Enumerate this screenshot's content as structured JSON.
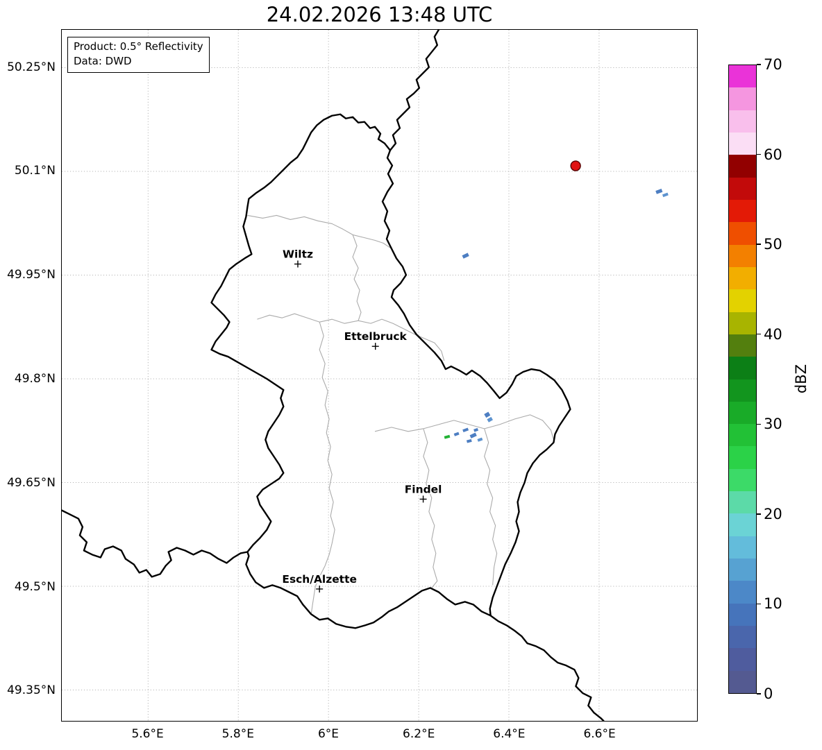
{
  "title": "24.02.2026 13:48 UTC",
  "info_box": {
    "line1": "Product: 0.5° Reflectivity",
    "line2": "Data: DWD"
  },
  "axes": {
    "x_ticks": [
      {
        "label": "5.6°E",
        "lon": 5.6
      },
      {
        "label": "5.8°E",
        "lon": 5.8
      },
      {
        "label": "6°E",
        "lon": 6.0
      },
      {
        "label": "6.2°E",
        "lon": 6.2
      },
      {
        "label": "6.4°E",
        "lon": 6.4
      },
      {
        "label": "6.6°E",
        "lon": 6.6
      }
    ],
    "y_ticks": [
      {
        "label": "50.25°N",
        "lat": 50.25
      },
      {
        "label": "50.1°N",
        "lat": 50.1
      },
      {
        "label": "49.95°N",
        "lat": 49.95
      },
      {
        "label": "49.8°N",
        "lat": 49.8
      },
      {
        "label": "49.65°N",
        "lat": 49.65
      },
      {
        "label": "49.5°N",
        "lat": 49.5
      },
      {
        "label": "49.35°N",
        "lat": 49.35
      }
    ]
  },
  "cities": [
    {
      "name": "Wiltz",
      "lon": 5.932,
      "lat": 49.966
    },
    {
      "name": "Ettelbruck",
      "lon": 6.104,
      "lat": 49.847
    },
    {
      "name": "Findel",
      "lon": 6.21,
      "lat": 49.626
    },
    {
      "name": "Esch/Alzette",
      "lon": 5.98,
      "lat": 49.496
    }
  ],
  "colorbar": {
    "label": "dBZ",
    "min": 0,
    "max": 70,
    "ticks": [
      {
        "value": 0,
        "label": "0"
      },
      {
        "value": 10,
        "label": "10"
      },
      {
        "value": 20,
        "label": "20"
      },
      {
        "value": 30,
        "label": "30"
      },
      {
        "value": 40,
        "label": "40"
      },
      {
        "value": 50,
        "label": "50"
      },
      {
        "value": 60,
        "label": "60"
      },
      {
        "value": 70,
        "label": "70"
      }
    ],
    "colors": [
      "#545a91",
      "#4f5c9e",
      "#4a66ac",
      "#4674bb",
      "#4c88c8",
      "#57a2d2",
      "#63bcdb",
      "#6bd3d5",
      "#5cdaa8",
      "#3cda68",
      "#2bd248",
      "#22c136",
      "#19ab28",
      "#12951e",
      "#0c7f16",
      "#537f0e",
      "#a8b400",
      "#e3d200",
      "#f2ae00",
      "#f38000",
      "#ef4f00",
      "#e31a06",
      "#c20a0a",
      "#920000",
      "#fbdef5",
      "#f9bfec",
      "#f596e0",
      "#ea33d8"
    ]
  },
  "echoes": [
    {
      "shape": "circle",
      "lon": 6.548,
      "lat": 50.108,
      "r": 7,
      "color": "#e01212",
      "edge": "#550000"
    },
    {
      "shape": "rect",
      "lon": 6.733,
      "lat": 50.071,
      "w": 9,
      "h": 5,
      "angle": -20,
      "color": "#4d7ec2"
    },
    {
      "shape": "rect",
      "lon": 6.747,
      "lat": 50.066,
      "w": 8,
      "h": 4,
      "angle": -20,
      "color": "#5d93cf"
    },
    {
      "shape": "rect",
      "lon": 6.304,
      "lat": 49.978,
      "w": 9,
      "h": 5,
      "angle": -25,
      "color": "#4d7ec2"
    },
    {
      "shape": "rect",
      "lon": 6.352,
      "lat": 49.748,
      "w": 7,
      "h": 6,
      "angle": -30,
      "color": "#4d7ec2"
    },
    {
      "shape": "rect",
      "lon": 6.358,
      "lat": 49.741,
      "w": 7,
      "h": 5,
      "angle": -30,
      "color": "#5d93cf"
    },
    {
      "shape": "rect",
      "lon": 6.263,
      "lat": 49.716,
      "w": 8,
      "h": 4,
      "angle": -15,
      "color": "#22b135"
    },
    {
      "shape": "rect",
      "lon": 6.284,
      "lat": 49.72,
      "w": 7,
      "h": 4,
      "angle": -20,
      "color": "#4d7ec2"
    },
    {
      "shape": "rect",
      "lon": 6.304,
      "lat": 49.726,
      "w": 8,
      "h": 4,
      "angle": -20,
      "color": "#4d7ec2"
    },
    {
      "shape": "rect",
      "lon": 6.321,
      "lat": 49.718,
      "w": 9,
      "h": 5,
      "angle": -25,
      "color": "#4d7ec2"
    },
    {
      "shape": "rect",
      "lon": 6.336,
      "lat": 49.712,
      "w": 7,
      "h": 4,
      "angle": -20,
      "color": "#5d93cf"
    },
    {
      "shape": "rect",
      "lon": 6.327,
      "lat": 49.726,
      "w": 6,
      "h": 4,
      "angle": -20,
      "color": "#4d7ec2"
    },
    {
      "shape": "rect",
      "lon": 6.312,
      "lat": 49.71,
      "w": 7,
      "h": 4,
      "angle": -15,
      "color": "#4d7ec2"
    }
  ],
  "colors": {
    "country_border": "#000000",
    "district_border": "#ababab",
    "gridline": "#9e9e9e",
    "background": "#ffffff"
  }
}
